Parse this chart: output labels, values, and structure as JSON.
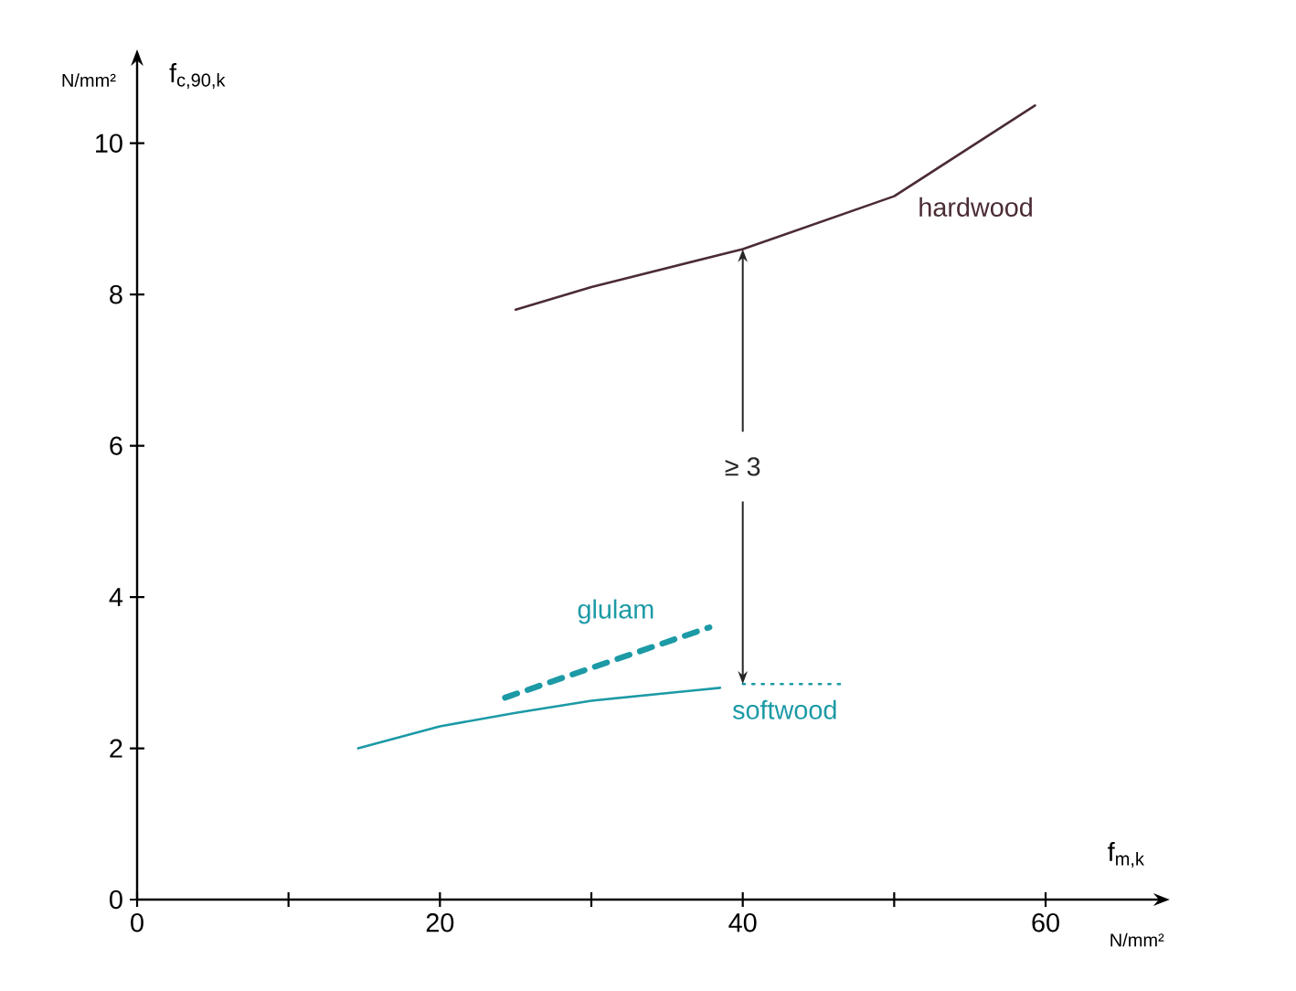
{
  "chart_data": {
    "type": "line",
    "xlabel": "f$_{m,k}$",
    "ylabel": "f$_{c,90,k}$",
    "annotations": [
      "N/mm²",
      "N/mm²",
      "≥ 3"
    ],
    "xlim": [
      0,
      67
    ],
    "ylim": [
      0,
      11
    ],
    "xticks": [
      0,
      {
        "value": 10,
        "label": null
      },
      20,
      {
        "value": 30,
        "label": null
      },
      40,
      {
        "value": 50,
        "label": null
      },
      60
    ],
    "yticks": [
      0,
      2,
      4,
      6,
      8,
      10
    ],
    "series": [
      {
        "name": "hardwood",
        "color": "#4b2c34",
        "x": [
          25,
          30,
          40,
          50,
          59.3
        ],
        "values": [
          7.8,
          8.1,
          8.6,
          9.3,
          10.5
        ]
      },
      {
        "name": "glulam",
        "color": "#1c9aa6",
        "line_style": "dashed",
        "x": [
          24.3,
          37.8
        ],
        "values": [
          2.67,
          3.6
        ]
      },
      {
        "name": "softwood",
        "color": "#1c9aa6",
        "x": [
          14.6,
          20,
          25,
          30,
          38.5
        ],
        "values": [
          2.0,
          2.29,
          2.47,
          2.63,
          2.8
        ]
      },
      {
        "color": "#1c9aa6",
        "line_style": "dotted",
        "x": [
          40,
          46.7
        ],
        "values": [
          2.85,
          2.85
        ]
      }
    ]
  }
}
